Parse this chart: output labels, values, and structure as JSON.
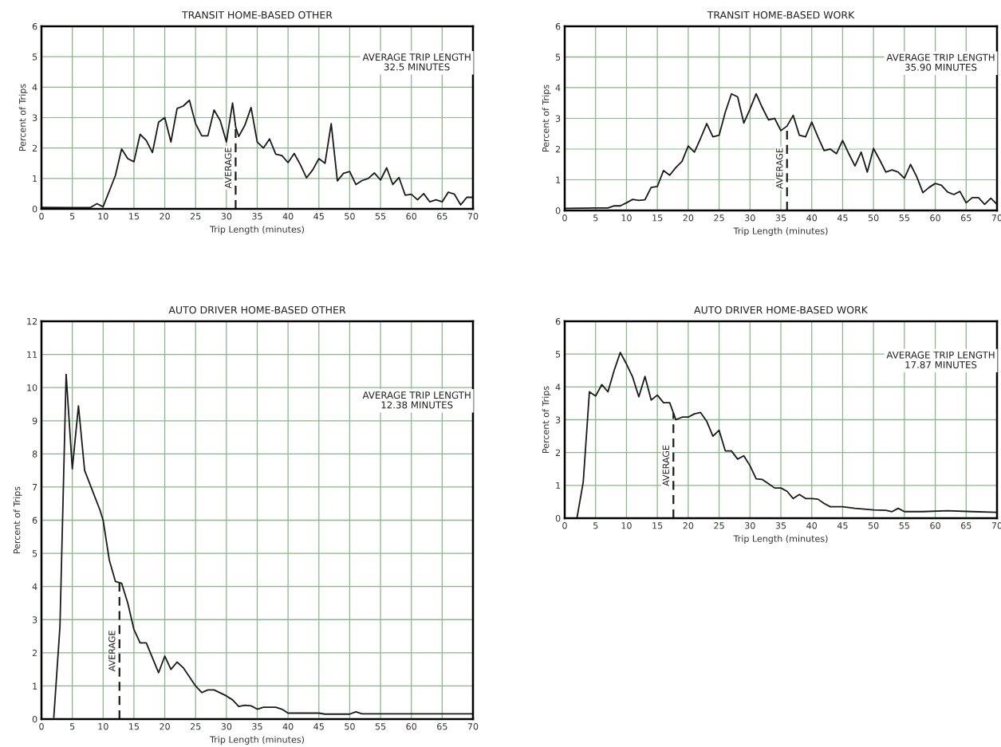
{
  "chart_data": [
    {
      "type": "line",
      "title": "TRANSIT HOME-BASED OTHER",
      "xlabel": "Trip Length (minutes)",
      "ylabel": "Percent of Trips",
      "annotations": [
        "AVERAGE TRIP LENGTH\n32.5 MINUTES"
      ],
      "xlim": [
        0,
        70
      ],
      "ylim": [
        0,
        6
      ],
      "xticks": [
        0,
        5,
        10,
        15,
        20,
        25,
        30,
        35,
        40,
        45,
        50,
        55,
        60,
        65,
        70
      ],
      "yticks": [
        0,
        1,
        2,
        3,
        4,
        5,
        6
      ],
      "grid": true,
      "ref_lines": [
        {
          "axis": "x",
          "value": 31.5,
          "label": "AVERAGE",
          "line_style": "dashed"
        }
      ],
      "series": [
        {
          "color": "#1a1a1a",
          "x": [
            0,
            5,
            8,
            9,
            10,
            12,
            13,
            14,
            15,
            16,
            17,
            18,
            19,
            20,
            21,
            22,
            23,
            24,
            25,
            26,
            27,
            28,
            29,
            30,
            31,
            31.5,
            32,
            33,
            34,
            35,
            36,
            37,
            38,
            39,
            40,
            41,
            42,
            43,
            44,
            45,
            46,
            47,
            48,
            49,
            50,
            51,
            52,
            53,
            54,
            55,
            56,
            57,
            58,
            59,
            60,
            61,
            62,
            63,
            64,
            65,
            66,
            67,
            68,
            69,
            70
          ],
          "values": [
            0.05,
            0.04,
            0.05,
            0.17,
            0.07,
            1.1,
            1.97,
            1.65,
            1.55,
            2.45,
            2.25,
            1.85,
            2.85,
            3.0,
            2.2,
            3.3,
            3.38,
            3.57,
            2.8,
            2.4,
            2.4,
            3.25,
            2.9,
            2.2,
            3.48,
            2.7,
            2.38,
            2.75,
            3.33,
            2.2,
            2.0,
            2.3,
            1.8,
            1.75,
            1.52,
            1.82,
            1.45,
            1.02,
            1.28,
            1.65,
            1.5,
            2.8,
            0.92,
            1.17,
            1.23,
            0.8,
            0.93,
            1.0,
            1.18,
            0.95,
            1.35,
            0.8,
            1.03,
            0.45,
            0.48,
            0.3,
            0.5,
            0.23,
            0.3,
            0.23,
            0.55,
            0.48,
            0.13,
            0.38,
            0.38
          ]
        }
      ]
    },
    {
      "type": "line",
      "title": "TRANSIT HOME-BASED WORK",
      "xlabel": "Trip Length (minutes)",
      "ylabel": "Percent of Trips",
      "annotations": [
        "AVERAGE TRIP LENGTH\n35.90 MINUTES"
      ],
      "xlim": [
        0,
        70
      ],
      "ylim": [
        0,
        6
      ],
      "xticks": [
        0,
        5,
        10,
        15,
        20,
        25,
        30,
        35,
        40,
        45,
        50,
        55,
        60,
        65,
        70
      ],
      "yticks": [
        0,
        1,
        2,
        3,
        4,
        5,
        6
      ],
      "grid": true,
      "ref_lines": [
        {
          "axis": "x",
          "value": 36,
          "label": "AVERAGE",
          "line_style": "dashed"
        }
      ],
      "series": [
        {
          "color": "#1a1a1a",
          "x": [
            0,
            5,
            7,
            8,
            9,
            10,
            11,
            12,
            13,
            14,
            15,
            16,
            17,
            18,
            19,
            20,
            21,
            22,
            23,
            24,
            25,
            26,
            27,
            28,
            29,
            30,
            31,
            32,
            33,
            34,
            35,
            36,
            37,
            38,
            39,
            40,
            41,
            42,
            43,
            44,
            45,
            46,
            47,
            48,
            49,
            50,
            51,
            52,
            53,
            54,
            55,
            56,
            57,
            58,
            59,
            60,
            61,
            62,
            63,
            64,
            65,
            66,
            67,
            68,
            69,
            70
          ],
          "values": [
            0.07,
            0.08,
            0.08,
            0.15,
            0.15,
            0.25,
            0.36,
            0.33,
            0.35,
            0.75,
            0.78,
            1.3,
            1.15,
            1.4,
            1.6,
            2.1,
            1.9,
            2.35,
            2.83,
            2.4,
            2.45,
            3.2,
            3.8,
            3.7,
            2.85,
            3.3,
            3.8,
            3.35,
            2.95,
            3.0,
            2.6,
            2.75,
            3.1,
            2.45,
            2.4,
            2.88,
            2.4,
            1.95,
            2.0,
            1.85,
            2.28,
            1.85,
            1.45,
            1.9,
            1.25,
            2.02,
            1.65,
            1.25,
            1.32,
            1.25,
            1.05,
            1.5,
            1.1,
            0.58,
            0.75,
            0.88,
            0.82,
            0.6,
            0.52,
            0.62,
            0.25,
            0.42,
            0.42,
            0.2,
            0.4,
            0.2
          ]
        }
      ]
    },
    {
      "type": "line",
      "title": "AUTO DRIVER HOME-BASED OTHER",
      "xlabel": "Trip Length (minutes)",
      "ylabel": "Percent of Trips",
      "annotations": [
        "AVERAGE TRIP LENGTH\n12.38 MINUTES"
      ],
      "xlim": [
        0,
        70
      ],
      "ylim": [
        0,
        12
      ],
      "xticks": [
        0,
        5,
        10,
        15,
        20,
        25,
        30,
        35,
        40,
        45,
        50,
        55,
        60,
        65,
        70
      ],
      "yticks": [
        0,
        1,
        2,
        3,
        4,
        5,
        6,
        7,
        8,
        9,
        10,
        11,
        12
      ],
      "grid": true,
      "ref_lines": [
        {
          "axis": "x",
          "value": 12.65,
          "label": "AVERAGE",
          "line_style": "dashed"
        }
      ],
      "series": [
        {
          "color": "#1a1a1a",
          "x": [
            2,
            3,
            4,
            5,
            6,
            7,
            9.5,
            10,
            11,
            12,
            13,
            14,
            15,
            16,
            17,
            19,
            20,
            21,
            22,
            23,
            25,
            26,
            27,
            28,
            30,
            31,
            32,
            33,
            34,
            35,
            36,
            38,
            39,
            40,
            45,
            46,
            50,
            51,
            52,
            70
          ],
          "values": [
            0.05,
            2.8,
            10.4,
            7.55,
            9.45,
            7.5,
            6.3,
            6.0,
            4.8,
            4.15,
            4.1,
            3.5,
            2.7,
            2.3,
            2.3,
            1.4,
            1.9,
            1.5,
            1.72,
            1.55,
            1.0,
            0.8,
            0.88,
            0.88,
            0.7,
            0.58,
            0.38,
            0.42,
            0.4,
            0.3,
            0.36,
            0.36,
            0.3,
            0.18,
            0.18,
            0.15,
            0.15,
            0.22,
            0.16,
            0.16
          ]
        }
      ]
    },
    {
      "type": "line",
      "title": "AUTO DRIVER HOME-BASED WORK",
      "xlabel": "Trip Length (minutes)",
      "ylabel": "Percent of Trips",
      "annotations": [
        "AVERAGE TRIP LENGTH\n17.87 MINUTES"
      ],
      "xlim": [
        0,
        70
      ],
      "ylim": [
        0,
        6
      ],
      "xticks": [
        0,
        5,
        10,
        15,
        20,
        25,
        30,
        35,
        40,
        45,
        50,
        55,
        60,
        65,
        70
      ],
      "yticks": [
        0,
        1,
        2,
        3,
        4,
        5,
        6
      ],
      "grid": true,
      "ref_lines": [
        {
          "axis": "x",
          "value": 17.6,
          "label": "AVERAGE",
          "line_style": "dashed"
        }
      ],
      "series": [
        {
          "color": "#1a1a1a",
          "x": [
            2,
            3,
            4,
            5,
            6,
            7,
            8,
            9,
            10,
            11,
            12,
            13,
            14,
            15,
            16,
            17,
            18,
            19,
            20,
            21,
            22,
            23,
            24,
            25,
            26,
            27,
            28,
            29,
            30,
            31,
            32,
            33,
            34,
            35,
            36,
            37,
            38,
            39,
            40,
            41,
            42,
            43,
            45,
            47,
            50,
            52,
            53,
            54,
            55,
            58,
            62,
            66,
            70
          ],
          "values": [
            0.02,
            1.1,
            3.85,
            3.72,
            4.07,
            3.85,
            4.5,
            5.05,
            4.7,
            4.3,
            3.7,
            4.32,
            3.6,
            3.75,
            3.52,
            3.52,
            3.0,
            3.08,
            3.08,
            3.18,
            3.22,
            2.95,
            2.5,
            2.68,
            2.05,
            2.05,
            1.8,
            1.9,
            1.6,
            1.2,
            1.18,
            1.05,
            0.92,
            0.92,
            0.82,
            0.6,
            0.72,
            0.6,
            0.6,
            0.58,
            0.45,
            0.35,
            0.35,
            0.3,
            0.25,
            0.24,
            0.2,
            0.3,
            0.2,
            0.2,
            0.23,
            0.2,
            0.18
          ]
        }
      ]
    }
  ]
}
